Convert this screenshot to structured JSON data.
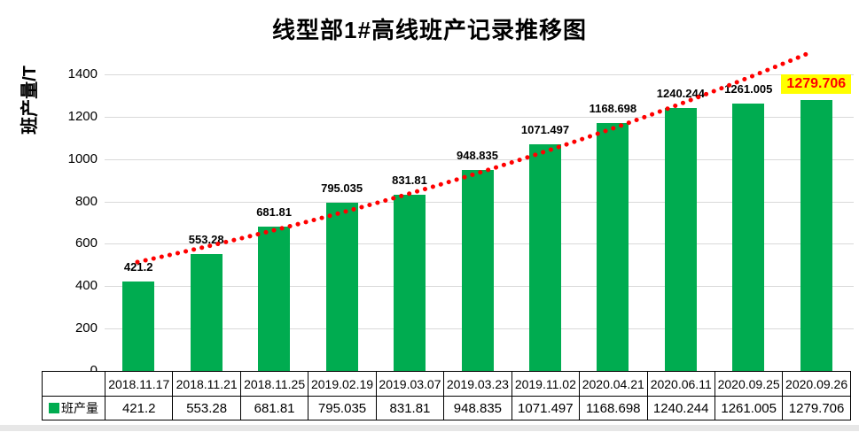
{
  "title": "线型部1#高线班产记录推移图",
  "y_axis_label": "班产量/T",
  "legend": {
    "label": "班产量"
  },
  "colors": {
    "bar": "#00AC50",
    "trendline": "#FF0000",
    "highlight_bg": "#FFFF00",
    "highlight_text": "#FF0000",
    "gridline": "#D9D9D9",
    "table_border": "#000000"
  },
  "chart_data": {
    "type": "bar",
    "title": "线型部1#高线班产记录推移图",
    "xlabel": "",
    "ylabel": "班产量/T",
    "ylim": [
      0,
      1400
    ],
    "y_ticks": [
      0,
      200,
      400,
      600,
      800,
      1000,
      1200,
      1400
    ],
    "grid": true,
    "legend_position": "bottom-left-table",
    "categories": [
      "2018.11.17",
      "2018.11.21",
      "2018.11.25",
      "2019.02.19",
      "2019.03.07",
      "2019.03.23",
      "2019.11.02",
      "2020.04.21",
      "2020.06.11",
      "2020.09.25",
      "2020.09.26"
    ],
    "series": [
      {
        "name": "班产量",
        "values": [
          421.2,
          553.28,
          681.81,
          795.035,
          831.81,
          948.835,
          1071.497,
          1168.698,
          1240.244,
          1261.005,
          1279.706
        ]
      }
    ],
    "data_labels": [
      "421.2",
      "553.28",
      "681.81",
      "795.035",
      "831.81",
      "948.835",
      "1071.497",
      "1168.698",
      "1240.244",
      "1261.005",
      "1279.706"
    ],
    "highlight": {
      "index": 10,
      "label": "1279.706"
    },
    "trendline": {
      "style": "dotted",
      "color": "#FF0000"
    }
  }
}
